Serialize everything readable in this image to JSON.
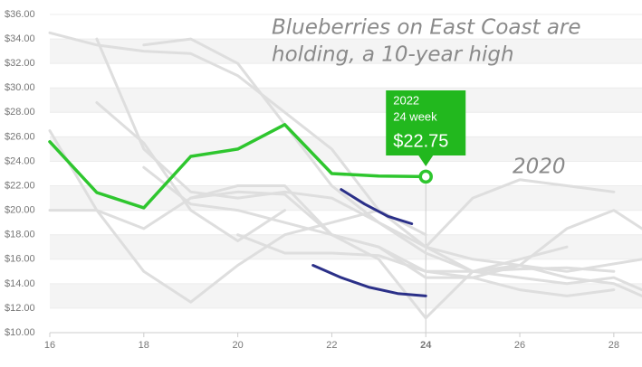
{
  "chart_data": {
    "type": "line",
    "annotations": [
      "Blueberries on East Coast are",
      "holding, a 10-year high",
      "2020"
    ],
    "tooltip": [
      "2022",
      "24 week"
    ],
    "crosshair_x": 24,
    "xlim": [
      16,
      28.6
    ],
    "xticks": [
      16,
      18,
      20,
      22,
      24,
      26,
      28
    ],
    "ylim": [
      10,
      36
    ],
    "yticks": [
      {
        "value": 10,
        "label": "$10.00"
      },
      {
        "value": 12,
        "label": "$12.00"
      },
      {
        "value": 14,
        "label": "$14.00"
      },
      {
        "value": 16,
        "label": "$16.00"
      },
      {
        "value": 18,
        "label": "$18.00"
      },
      {
        "value": 20,
        "label": "$20.00"
      },
      {
        "value": 22,
        "label": "$22.00"
      },
      {
        "value": 24,
        "label": "$24.00"
      },
      {
        "value": 26,
        "label": "$26.00"
      },
      {
        "value": 28,
        "label": "$28.00"
      },
      {
        "value": 30,
        "label": "$30.00"
      },
      {
        "value": 32,
        "label": "$32.00"
      },
      {
        "value": 34,
        "label": "$34.00"
      },
      {
        "value": 36,
        "label": "$36.00"
      }
    ],
    "grid": true,
    "series": [
      {
        "color": "#dedede",
        "x": [
          16,
          17,
          18,
          19,
          20,
          21,
          22,
          23,
          24,
          25,
          26,
          27,
          28
        ],
        "values": [
          34.5,
          33.5,
          33,
          32.8,
          31,
          28,
          25,
          20,
          17,
          15,
          15.2,
          15.3,
          15
        ]
      },
      {
        "color": "#dedede",
        "x": [
          17,
          18,
          19,
          20,
          21,
          22,
          23,
          24,
          25,
          26,
          27,
          28.6
        ],
        "values": [
          34,
          25,
          21.5,
          21,
          21.5,
          21,
          19,
          17,
          16,
          15.5,
          15,
          16
        ]
      },
      {
        "color": "#dedede",
        "x": [
          18,
          19,
          20,
          21,
          22,
          23,
          24,
          25,
          26,
          27,
          28,
          28.6
        ],
        "values": [
          33.5,
          34,
          32,
          27,
          22,
          19,
          16.5,
          15,
          14.5,
          14,
          14.5,
          13.5
        ]
      },
      {
        "color": "#dedede",
        "x": [
          16,
          17,
          18,
          19,
          20,
          21,
          22,
          23,
          24
        ],
        "values": [
          26.5,
          20,
          15,
          12.5,
          15.5,
          18,
          19,
          20,
          18
        ]
      },
      {
        "color": "#dedede",
        "x": [
          16,
          17,
          18,
          19,
          20,
          21,
          22,
          23,
          24,
          25,
          26,
          27,
          28,
          28.6
        ],
        "values": [
          20,
          20,
          18.5,
          21,
          22,
          22,
          18,
          17,
          15,
          15,
          15.5,
          18.5,
          20,
          18.5
        ]
      },
      {
        "color": "#dedede",
        "x": [
          17,
          18,
          19,
          20,
          21
        ],
        "values": [
          28.8,
          25.5,
          20,
          17.5,
          20
        ]
      },
      {
        "color": "#dedede",
        "x": [
          18,
          19,
          20,
          21,
          22,
          23,
          24,
          25,
          26,
          27,
          28
        ],
        "values": [
          23.5,
          20.5,
          20,
          19,
          18,
          17,
          14.5,
          14.5,
          13.5,
          13,
          13.5
        ]
      },
      {
        "color": "#dedede",
        "x": [
          24,
          25,
          26,
          27,
          28
        ],
        "values": [
          17,
          21,
          22.5,
          22,
          21.5
        ]
      },
      {
        "color": "#dedede",
        "x": [
          19,
          20,
          21,
          22,
          23,
          24,
          25,
          26,
          27
        ],
        "values": [
          21,
          21.5,
          21.3,
          18,
          16,
          11.2,
          15,
          16,
          17
        ]
      },
      {
        "color": "#dedede",
        "x": [
          20,
          21,
          22,
          23,
          24,
          25,
          26,
          27,
          28,
          28.6
        ],
        "values": [
          18,
          16.5,
          16.5,
          16.3,
          15,
          14.5,
          15.5,
          14.5,
          14,
          13
        ]
      },
      {
        "color": "#2b3088",
        "x": [
          22.2,
          22.7,
          23.2,
          23.7
        ],
        "values": [
          21.7,
          20.5,
          19.5,
          18.9
        ]
      },
      {
        "color": "#2b3088",
        "x": [
          21.6,
          22.2,
          22.8,
          23.4,
          24
        ],
        "values": [
          15.5,
          14.5,
          13.7,
          13.2,
          13.0
        ]
      },
      {
        "color": "#2ec62e",
        "x": [
          16,
          17,
          18,
          19,
          20,
          21,
          22,
          23,
          24
        ],
        "values": [
          25.6,
          21.45,
          20.2,
          24.4,
          25.0,
          27.0,
          23.0,
          22.8,
          22.75
        ],
        "value_labels": [
          null,
          null,
          null,
          null,
          null,
          null,
          null,
          null,
          "$22.75"
        ]
      }
    ]
  }
}
